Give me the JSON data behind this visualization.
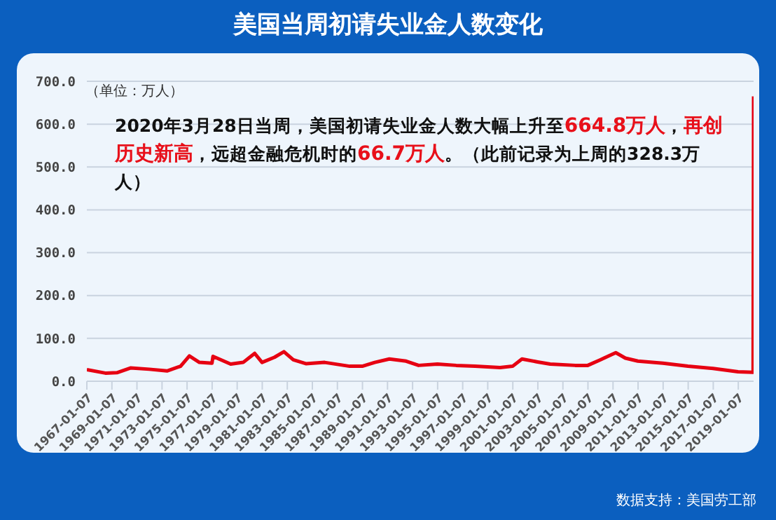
{
  "chart_data": {
    "type": "line",
    "title": "美国当周初请失业金人数变化",
    "ylabel": "（单位：万人）",
    "annotations": [
      "2020年3月28日当周，美国初请失业金人数大幅上升至",
      "664.8万人",
      "，",
      "再创历史新高",
      "，远超金融危机时的",
      "66.7万人",
      "。（此前记录为上周的328.3万人）",
      "数据支持：美国劳工部"
    ],
    "x": [
      "1967-01-07",
      "1968-07-01",
      "1969-06-01",
      "1970-07-01",
      "1972-01-01",
      "1973-06-01",
      "1974-07-01",
      "1975-03-15",
      "1976-01-01",
      "1977-01-01",
      "1977-02-01",
      "1978-07-01",
      "1979-07-01",
      "1980-06-01",
      "1981-01-01",
      "1982-01-01",
      "1982-10-01",
      "1983-07-01",
      "1984-07-01",
      "1986-01-01",
      "1988-01-01",
      "1989-01-01",
      "1990-01-01",
      "1991-03-01",
      "1992-07-01",
      "1993-07-01",
      "1995-01-01",
      "1996-07-01",
      "1998-01-01",
      "2000-01-01",
      "2001-01-01",
      "2001-10-01",
      "2003-01-01",
      "2004-01-01",
      "2006-01-01",
      "2007-01-01",
      "2008-01-01",
      "2009-03-28",
      "2010-01-01",
      "2011-01-01",
      "2013-01-01",
      "2015-01-01",
      "2017-01-01",
      "2019-01-01",
      "2020-03-14",
      "2020-03-21",
      "2020-03-28"
    ],
    "series": [
      {
        "color": "#e60012",
        "values": [
          27,
          19,
          20,
          31,
          28,
          24,
          35,
          59,
          44,
          42,
          58,
          40,
          44,
          65,
          44,
          56,
          69,
          50,
          41,
          44,
          35,
          35,
          44,
          52,
          47,
          37,
          40,
          37,
          35,
          32,
          35,
          52,
          45,
          40,
          37,
          37,
          50,
          66.7,
          54,
          47,
          42,
          35,
          30,
          22,
          21,
          328.3,
          664.8
        ]
      }
    ],
    "xlim": [
      "1967-01-07",
      "2020-03-28"
    ],
    "xticks": [
      "1967-01-07",
      "1969-01-07",
      "1971-01-07",
      "1973-01-07",
      "1975-01-07",
      "1977-01-07",
      "1979-01-07",
      "1981-01-07",
      "1983-01-07",
      "1985-01-07",
      "1987-01-07",
      "1989-01-07",
      "1991-01-07",
      "1993-01-07",
      "1995-01-07",
      "1997-01-07",
      "1999-01-07",
      "2001-01-07",
      "2003-01-07",
      "2005-01-07",
      "2007-01-07",
      "2009-01-07",
      "2011-01-07",
      "2013-01-07",
      "2015-01-07",
      "2017-01-07",
      "2019-01-07"
    ],
    "ylim": [
      0,
      700
    ],
    "yticks": [
      {
        "value": 0,
        "label": "0.0"
      },
      {
        "value": 100,
        "label": "100.0"
      },
      {
        "value": 200,
        "label": "200.0"
      },
      {
        "value": 300,
        "label": "300.0"
      },
      {
        "value": 400,
        "label": "400.0"
      },
      {
        "value": 500,
        "label": "500.0"
      },
      {
        "value": 600,
        "label": "600.0"
      },
      {
        "value": 700,
        "label": "700.0"
      }
    ],
    "grid": "y",
    "legend": false,
    "marker": "none",
    "line_style": "solid"
  }
}
